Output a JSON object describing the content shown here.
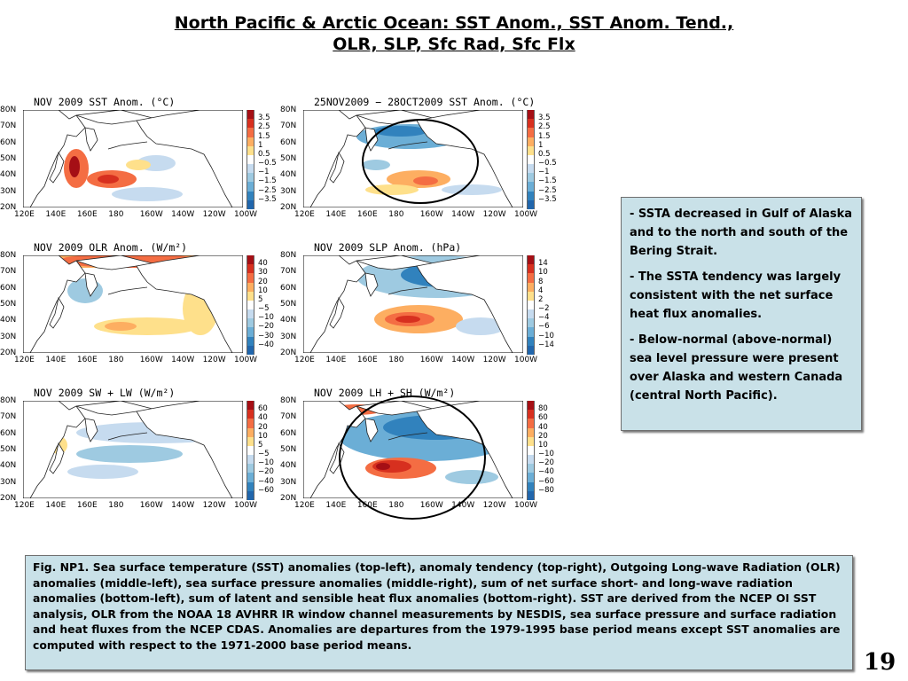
{
  "title": {
    "line1": "North Pacific & Arctic Ocean: SST Anom., SST Anom. Tend.,",
    "line2": "OLR, SLP, Sfc Rad, Sfc Flx"
  },
  "panels": [
    {
      "title": "NOV 2009 SST Anom. (°C)",
      "y_ticks": [
        "80N",
        "70N",
        "60N",
        "50N",
        "40N",
        "30N",
        "20N"
      ],
      "x_ticks": [
        "120E",
        "140E",
        "160E",
        "180",
        "160W",
        "140W",
        "120W",
        "100W"
      ],
      "colorbar": [
        "3.5",
        "2.5",
        "1.5",
        "1",
        "0.5",
        "−0.5",
        "−1",
        "−1.5",
        "−2.5",
        "−3.5"
      ]
    },
    {
      "title": "25NOV2009 − 28OCT2009 SST Anom. (°C)",
      "y_ticks": [
        "80N",
        "70N",
        "60N",
        "50N",
        "40N",
        "30N",
        "20N"
      ],
      "x_ticks": [
        "120E",
        "140E",
        "160E",
        "180",
        "160W",
        "140W",
        "120W",
        "100W"
      ],
      "colorbar": [
        "3.5",
        "2.5",
        "1.5",
        "1",
        "0.5",
        "−0.5",
        "−1",
        "−1.5",
        "−2.5",
        "−3.5"
      ]
    },
    {
      "title": "NOV 2009 OLR Anom. (W/m²)",
      "y_ticks": [
        "80N",
        "70N",
        "60N",
        "50N",
        "40N",
        "30N",
        "20N"
      ],
      "x_ticks": [
        "120E",
        "140E",
        "160E",
        "180",
        "160W",
        "140W",
        "120W",
        "100W"
      ],
      "colorbar": [
        "40",
        "30",
        "20",
        "10",
        "5",
        "−5",
        "−10",
        "−20",
        "−30",
        "−40"
      ]
    },
    {
      "title": "NOV 2009 SLP Anom. (hPa)",
      "y_ticks": [
        "80N",
        "70N",
        "60N",
        "50N",
        "40N",
        "30N",
        "20N"
      ],
      "x_ticks": [
        "120E",
        "140E",
        "160E",
        "180",
        "160W",
        "140W",
        "120W",
        "100W"
      ],
      "colorbar": [
        "14",
        "10",
        "8",
        "4",
        "2",
        "−2",
        "−4",
        "−6",
        "−10",
        "−14"
      ]
    },
    {
      "title": "NOV 2009 SW + LW (W/m²)",
      "y_ticks": [
        "80N",
        "70N",
        "60N",
        "50N",
        "40N",
        "30N",
        "20N"
      ],
      "x_ticks": [
        "120E",
        "140E",
        "160E",
        "180",
        "160W",
        "140W",
        "120W",
        "100W"
      ],
      "colorbar": [
        "60",
        "40",
        "20",
        "10",
        "5",
        "−5",
        "−10",
        "−20",
        "−40",
        "−60"
      ]
    },
    {
      "title": "NOV 2009 LH + SH (W/m²)",
      "y_ticks": [
        "80N",
        "70N",
        "60N",
        "50N",
        "40N",
        "30N",
        "20N"
      ],
      "x_ticks": [
        "120E",
        "140E",
        "160E",
        "180",
        "160W",
        "140W",
        "120W",
        "100W"
      ],
      "colorbar": [
        "80",
        "60",
        "40",
        "20",
        "10",
        "−10",
        "−20",
        "−40",
        "−60",
        "−80"
      ]
    }
  ],
  "colors": {
    "scale": [
      "#a50f15",
      "#d7301f",
      "#f46d43",
      "#fdae61",
      "#fee08b",
      "#ffffff",
      "#c6dbef",
      "#9ecae1",
      "#6baed6",
      "#3182bd",
      "#2166ac"
    ],
    "panel_bg": "#c9e1e8"
  },
  "side_notes": [
    {
      "dash": "- ",
      "text": "SSTA decreased in Gulf of Alaska and to the north and south of the Bering Strait."
    },
    {
      "dash": "- ",
      "text": "The SSTA tendency was largely consistent with the net surface heat flux anomalies."
    },
    {
      "dash": "- ",
      "text": "Below-normal (above-normal) sea level pressure were present over Alaska and western Canada (central North Pacific)."
    }
  ],
  "caption": "Fig. NP1. Sea surface temperature (SST) anomalies (top-left), anomaly tendency (top-right), Outgoing Long-wave Radiation (OLR) anomalies (middle-left), sea surface pressure anomalies (middle-right), sum of net surface short- and long-wave radiation anomalies (bottom-left), sum of latent and sensible heat flux anomalies (bottom-right). SST are derived from the NCEP OI SST analysis, OLR from the NOAA 18 AVHRR IR window channel measurements by NESDIS, sea surface pressure and surface radiation and heat fluxes from the NCEP CDAS. Anomalies are departures from the 1979-1995 base period means except SST anomalies are computed with respect to the 1971-2000 base period means.",
  "page_number": "19"
}
